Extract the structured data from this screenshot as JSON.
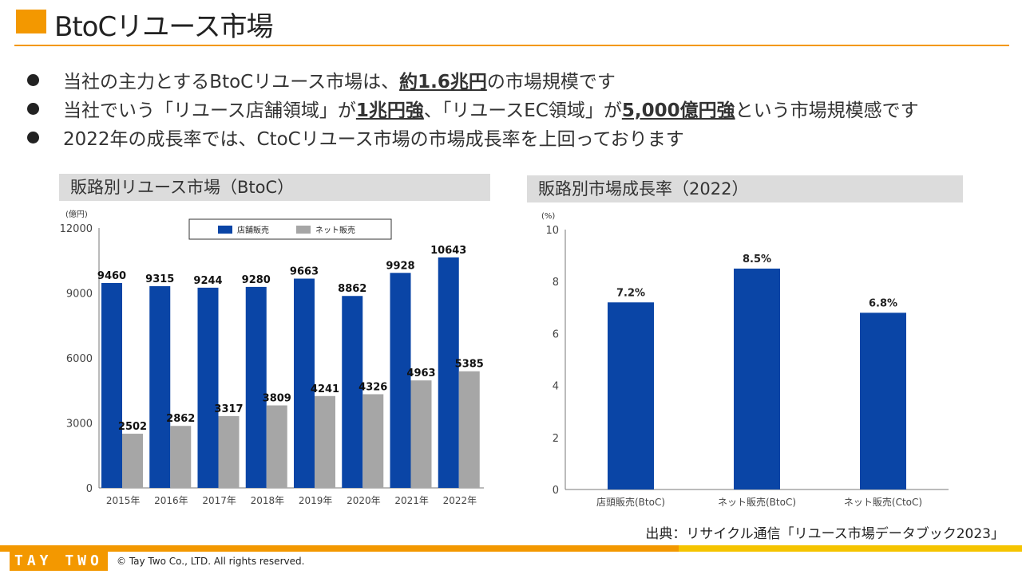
{
  "header": {
    "title": "BtoCリユース市場"
  },
  "bullets": [
    {
      "before": "当社の主力とするBtoCリユース市場は、",
      "bold1": "約1.6兆円",
      "mid": "の市場規模です",
      "bold2": "",
      "after": ""
    },
    {
      "before": "当社でいう「リユース店舗領域」が",
      "bold1": "1兆円強",
      "mid": "、「リユースEC領域」が",
      "bold2": "5,000億円強",
      "after": "という市場規模感です"
    },
    {
      "before": "2022年の成長率では、CtoCリユース市場の市場成長率を上回っております",
      "bold1": "",
      "mid": "",
      "bold2": "",
      "after": ""
    }
  ],
  "chart_data": [
    {
      "type": "bar",
      "panel_title": "販路別リユース市場（BtoC）",
      "unit_label": "(億円)",
      "categories": [
        "2015年",
        "2016年",
        "2017年",
        "2018年",
        "2019年",
        "2020年",
        "2021年",
        "2022年"
      ],
      "series": [
        {
          "name": "店舗販売",
          "color": "#0a45a6",
          "values": [
            9460,
            9315,
            9244,
            9280,
            9663,
            8862,
            9928,
            10643
          ]
        },
        {
          "name": "ネット販売",
          "color": "#a6a6a6",
          "values": [
            2502,
            2862,
            3317,
            3809,
            4241,
            4326,
            4963,
            5385
          ]
        }
      ],
      "yticks": [
        "0",
        "3000",
        "6000",
        "9000",
        "12000"
      ],
      "ylim": [
        0,
        12000
      ],
      "legend_position": "top-center"
    },
    {
      "type": "bar",
      "panel_title": "販路別市場成長率（2022）",
      "unit_label": "(%)",
      "categories": [
        "店頭販売(BtoC)",
        "ネット販売(BtoC)",
        "ネット販売(CtoC)"
      ],
      "values": [
        7.2,
        8.5,
        6.8
      ],
      "value_labels": [
        "7.2%",
        "8.5%",
        "6.8%"
      ],
      "color": "#0a45a6",
      "yticks": [
        "0",
        "2",
        "4",
        "6",
        "8",
        "10"
      ],
      "ylim": [
        0,
        10
      ]
    }
  ],
  "source": "出典：リサイクル通信「リユース市場データブック2023」",
  "footer": {
    "logo": "TAY TWO",
    "copyright": "© Tay Two Co., LTD. All rights reserved."
  }
}
